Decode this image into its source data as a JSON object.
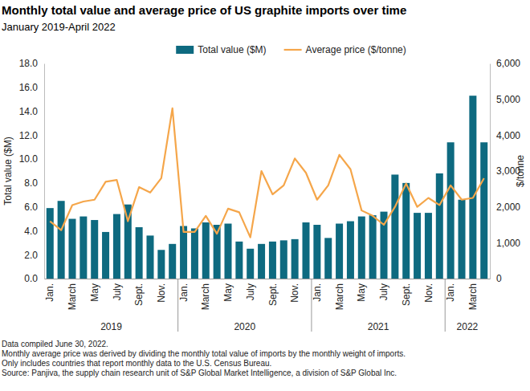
{
  "chart_data": {
    "type": "bar",
    "title": "Monthly total value and average price of US graphite imports over time",
    "subtitle": "January 2019-April 2022",
    "ylabel": "Total value ($M)",
    "y2label": "$/tonne",
    "categories": [
      "Jan.",
      null,
      "March",
      null,
      "May",
      null,
      "July",
      null,
      "Sept.",
      null,
      "Nov.",
      null,
      "Jan.",
      null,
      "March",
      null,
      "May",
      null,
      "July",
      null,
      "Sept.",
      null,
      "Nov.",
      null,
      "Jan.",
      null,
      "March",
      null,
      "May",
      null,
      "July",
      null,
      "Sept.",
      null,
      "Nov.",
      null,
      "Jan.",
      null,
      "March",
      null
    ],
    "groups": [
      {
        "label": "2019",
        "count": 12
      },
      {
        "label": "2020",
        "count": 12
      },
      {
        "label": "2021",
        "count": 12
      },
      {
        "label": "2022",
        "count": 4
      }
    ],
    "series": [
      {
        "name": "Total value ($M)",
        "type": "bar",
        "color": "#0e6a80",
        "values": [
          5.9,
          6.5,
          5.0,
          5.2,
          4.9,
          3.9,
          5.4,
          6.2,
          4.3,
          3.6,
          2.4,
          2.9,
          4.4,
          4.2,
          4.7,
          4.5,
          4.6,
          3.1,
          2.5,
          2.9,
          3.1,
          3.2,
          3.3,
          4.7,
          4.5,
          3.4,
          4.6,
          4.8,
          5.2,
          5.3,
          5.6,
          8.7,
          8.0,
          5.5,
          5.5,
          8.8,
          11.4,
          6.6,
          15.3,
          11.4
        ]
      },
      {
        "name": "Average price ($/tonne)",
        "type": "line",
        "color": "#f5a64a",
        "axis": "y2",
        "values": [
          1600,
          1350,
          2050,
          2150,
          2200,
          2700,
          2750,
          1600,
          2550,
          2400,
          2800,
          4750,
          1300,
          1300,
          1750,
          1250,
          1950,
          1850,
          1150,
          3000,
          2350,
          2600,
          3350,
          2950,
          2200,
          2600,
          3450,
          3050,
          1900,
          1750,
          1500,
          2000,
          2650,
          2000,
          2250,
          2050,
          2600,
          2200,
          2250,
          2800
        ]
      }
    ],
    "ylim": [
      0,
      18
    ],
    "yticks": [
      {
        "value": 0,
        "label": "0.0"
      },
      {
        "value": 2,
        "label": "2.0"
      },
      {
        "value": 4,
        "label": "4.0"
      },
      {
        "value": 6,
        "label": "6.0"
      },
      {
        "value": 8,
        "label": "8.0"
      },
      {
        "value": 10,
        "label": "10.0"
      },
      {
        "value": 12,
        "label": "12.0"
      },
      {
        "value": 14,
        "label": "14.0"
      },
      {
        "value": 16,
        "label": "16.0"
      },
      {
        "value": 18,
        "label": "18.0"
      }
    ],
    "y2lim": [
      0,
      6000
    ],
    "y2ticks": [
      0,
      {
        "value": 1000,
        "label": "1,000"
      },
      {
        "value": 2000,
        "label": "2,000"
      },
      {
        "value": 3000,
        "label": "3,000"
      },
      {
        "value": 4000,
        "label": "4,000"
      },
      {
        "value": 5000,
        "label": "5,000"
      },
      {
        "value": 6000,
        "label": "6,000"
      }
    ],
    "grid": false,
    "legend": "top",
    "notes": [
      "Data compiled June 30, 2022.",
      "Monthly average price was derived by dividing the monthly total value of imports by the monthly weight of imports.",
      "Only includes countries that report monthly data to the U.S. Census Bureau.",
      "Source: Panjiva, the supply chain research unit of S&P Global Market Intelligence, a division of S&P Global Inc."
    ]
  }
}
